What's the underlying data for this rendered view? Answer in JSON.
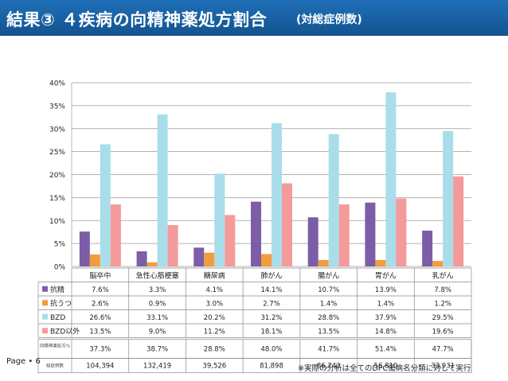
{
  "slide": {
    "title": "結果③ ４疾病の向精神薬処方割合",
    "subtitle": "(対総症例数)",
    "page_label": "Page • 6",
    "footnote": "※実際の分析は全てのDPC傷病名分類に対して実行"
  },
  "colors": {
    "header": "#1a5fa3",
    "series": [
      "#7b5ea7",
      "#f39c3c",
      "#a9dde9",
      "#f59a9a"
    ]
  },
  "chart_data": {
    "type": "bar",
    "categories": [
      "脳卒中",
      "急性心筋梗塞",
      "糖尿病",
      "肺がん",
      "腸がん",
      "胃がん",
      "乳がん"
    ],
    "series": [
      {
        "name": "抗精",
        "values": [
          7.6,
          3.3,
          4.1,
          14.1,
          10.7,
          13.9,
          7.8
        ],
        "labels": [
          "7.6%",
          "3.3%",
          "4.1%",
          "14.1%",
          "10.7%",
          "13.9%",
          "7.8%"
        ]
      },
      {
        "name": "抗うつ",
        "values": [
          2.6,
          0.9,
          3.0,
          2.7,
          1.4,
          1.4,
          1.2
        ],
        "labels": [
          "2.6%",
          "0.9%",
          "3.0%",
          "2.7%",
          "1.4%",
          "1.4%",
          "1.2%"
        ]
      },
      {
        "name": "BZD",
        "values": [
          26.6,
          33.1,
          20.2,
          31.2,
          28.8,
          37.9,
          29.5
        ],
        "labels": [
          "26.6%",
          "33.1%",
          "20.2%",
          "31.2%",
          "28.8%",
          "37.9%",
          "29.5%"
        ]
      },
      {
        "name": "BZD以外",
        "values": [
          13.5,
          9.0,
          11.2,
          18.1,
          13.5,
          14.8,
          19.6
        ],
        "labels": [
          "13.5%",
          "9.0%",
          "11.2%",
          "18.1%",
          "13.5%",
          "14.8%",
          "19.6%"
        ]
      }
    ],
    "extra_rows": [
      {
        "label": "向精神薬処方%",
        "values": [
          "37.3%",
          "38.7%",
          "28.8%",
          "48.0%",
          "41.7%",
          "51.4%",
          "47.7%"
        ]
      },
      {
        "label": "総症例数",
        "values": [
          "104,394",
          "132,419",
          "39,526",
          "81,898",
          "86,743",
          "56,810",
          "33,931"
        ]
      }
    ],
    "yticks": [
      "0%",
      "5%",
      "10%",
      "15%",
      "20%",
      "25%",
      "30%",
      "35%",
      "40%"
    ],
    "ylim": [
      0,
      40
    ],
    "grid": true,
    "legend": "data-table"
  }
}
